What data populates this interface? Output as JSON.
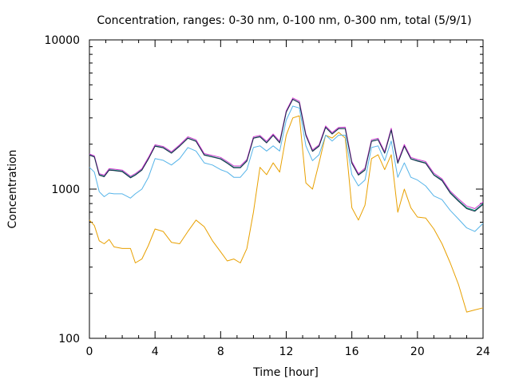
{
  "chart_data": {
    "type": "line",
    "title": "Concentration, ranges: 0-30 nm, 0-100 nm, 0-300 nm, total (5/9/1)",
    "xlabel": "Time [hour]",
    "ylabel": "Concentration",
    "xlim": [
      0,
      24
    ],
    "ylim": [
      100,
      10000
    ],
    "yscale": "log",
    "grid": false,
    "legend": "none",
    "x_ticks": [
      0,
      4,
      8,
      12,
      16,
      20,
      24
    ],
    "x_tick_labels": [
      "0",
      "4",
      "8",
      "12",
      "16",
      "20",
      "24"
    ],
    "y_ticks": [
      100,
      1000,
      10000
    ],
    "y_tick_labels": [
      "100",
      "1000",
      "10000"
    ],
    "x": [
      0,
      0.3,
      0.6,
      0.9,
      1.2,
      1.5,
      2.0,
      2.5,
      2.8,
      3.2,
      3.6,
      4.0,
      4.5,
      5.0,
      5.5,
      6.0,
      6.5,
      7.0,
      7.5,
      8.0,
      8.4,
      8.8,
      9.2,
      9.6,
      10.0,
      10.4,
      10.8,
      11.2,
      11.6,
      12.0,
      12.4,
      12.8,
      13.2,
      13.6,
      14.0,
      14.4,
      14.8,
      15.2,
      15.6,
      16.0,
      16.4,
      16.8,
      17.2,
      17.6,
      18.0,
      18.4,
      18.8,
      19.2,
      19.6,
      20.0,
      20.5,
      21.0,
      21.5,
      22.0,
      22.5,
      23.0,
      23.5,
      24.0
    ],
    "series": [
      {
        "color": "#e8a000",
        "values": [
          620,
          570,
          450,
          430,
          460,
          410,
          400,
          400,
          320,
          340,
          420,
          540,
          520,
          440,
          430,
          520,
          620,
          560,
          450,
          380,
          330,
          340,
          320,
          400,
          700,
          1400,
          1250,
          1500,
          1300,
          2300,
          3000,
          3100,
          1100,
          1000,
          1500,
          2300,
          2200,
          2400,
          2200,
          750,
          620,
          780,
          1600,
          1700,
          1350,
          1700,
          700,
          1000,
          750,
          650,
          640,
          540,
          430,
          320,
          230,
          150,
          155,
          160
        ]
      },
      {
        "color": "#56b4e9",
        "values": [
          1400,
          1300,
          960,
          890,
          940,
          930,
          930,
          870,
          930,
          1000,
          1200,
          1600,
          1560,
          1450,
          1600,
          1900,
          1800,
          1500,
          1450,
          1350,
          1300,
          1200,
          1200,
          1350,
          1900,
          1950,
          1800,
          1950,
          1800,
          2900,
          3600,
          3500,
          1950,
          1550,
          1700,
          2300,
          2100,
          2300,
          2300,
          1250,
          1050,
          1150,
          1900,
          1950,
          1550,
          2100,
          1200,
          1500,
          1200,
          1150,
          1050,
          900,
          850,
          720,
          630,
          550,
          520,
          590
        ]
      },
      {
        "color": "#009e73",
        "values": [
          1700,
          1650,
          1250,
          1220,
          1350,
          1340,
          1320,
          1200,
          1250,
          1350,
          1600,
          1950,
          1900,
          1750,
          1950,
          2200,
          2100,
          1700,
          1650,
          1600,
          1500,
          1400,
          1400,
          1550,
          2200,
          2250,
          2050,
          2300,
          2050,
          3300,
          4000,
          3800,
          2300,
          1800,
          1950,
          2600,
          2350,
          2550,
          2550,
          1500,
          1250,
          1350,
          2100,
          2150,
          1750,
          2500,
          1500,
          1950,
          1600,
          1550,
          1500,
          1250,
          1150,
          950,
          840,
          750,
          720,
          800
        ]
      },
      {
        "color": "#cc33cc",
        "values": [
          1720,
          1670,
          1270,
          1240,
          1370,
          1360,
          1340,
          1220,
          1270,
          1370,
          1630,
          1980,
          1930,
          1780,
          1980,
          2240,
          2140,
          1730,
          1680,
          1630,
          1530,
          1430,
          1430,
          1580,
          2240,
          2290,
          2090,
          2340,
          2090,
          3350,
          4080,
          3880,
          2340,
          1830,
          1980,
          2650,
          2390,
          2590,
          2600,
          1530,
          1270,
          1380,
          2140,
          2190,
          1780,
          2560,
          1530,
          1990,
          1630,
          1580,
          1530,
          1280,
          1170,
          970,
          860,
          770,
          740,
          820
        ]
      },
      {
        "color": "#1a2a4a",
        "values": [
          1690,
          1640,
          1240,
          1210,
          1340,
          1330,
          1310,
          1190,
          1240,
          1340,
          1590,
          1940,
          1890,
          1740,
          1940,
          2190,
          2090,
          1690,
          1640,
          1590,
          1490,
          1390,
          1390,
          1540,
          2190,
          2240,
          2040,
          2290,
          2040,
          3280,
          4000,
          3780,
          2290,
          1790,
          1940,
          2590,
          2340,
          2540,
          2540,
          1490,
          1240,
          1340,
          2090,
          2140,
          1740,
          2490,
          1490,
          1940,
          1590,
          1540,
          1490,
          1240,
          1140,
          940,
          830,
          740,
          710,
          790
        ]
      }
    ]
  }
}
